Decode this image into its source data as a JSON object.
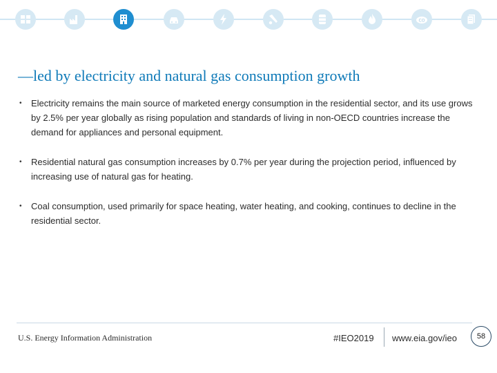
{
  "nav_icons": [
    {
      "name": "all-sectors-icon",
      "active": false
    },
    {
      "name": "industrial-icon",
      "active": false
    },
    {
      "name": "buildings-icon",
      "active": true
    },
    {
      "name": "transportation-icon",
      "active": false
    },
    {
      "name": "electricity-icon",
      "active": false
    },
    {
      "name": "petroleum-icon",
      "active": false
    },
    {
      "name": "oil-barrel-icon",
      "active": false
    },
    {
      "name": "natural-gas-icon",
      "active": false
    },
    {
      "name": "co2-emissions-icon",
      "active": false
    },
    {
      "name": "documents-icon",
      "active": false
    }
  ],
  "colors": {
    "accent": "#1f8ed0",
    "title": "#0f7ab8",
    "icon_bg": "#d6e9f4"
  },
  "title": "—led by electricity and natural gas consumption growth",
  "bullets": [
    "Electricity remains the main source of marketed energy consumption in the residential sector, and its use grows by 2.5% per year globally as rising population and standards of living in non-OECD countries increase the demand for appliances and personal equipment.",
    "Residential natural gas consumption increases by 0.7% per year during the projection period, influenced by increasing use of natural gas for heating.",
    "Coal consumption, used primarily for space heating, water heating, and cooking, continues to decline in the residential sector."
  ],
  "footer": {
    "org": "U.S. Energy Information Administration",
    "hashtag": "#IEO2019",
    "url": "www.eia.gov/ieo",
    "page": "58"
  }
}
